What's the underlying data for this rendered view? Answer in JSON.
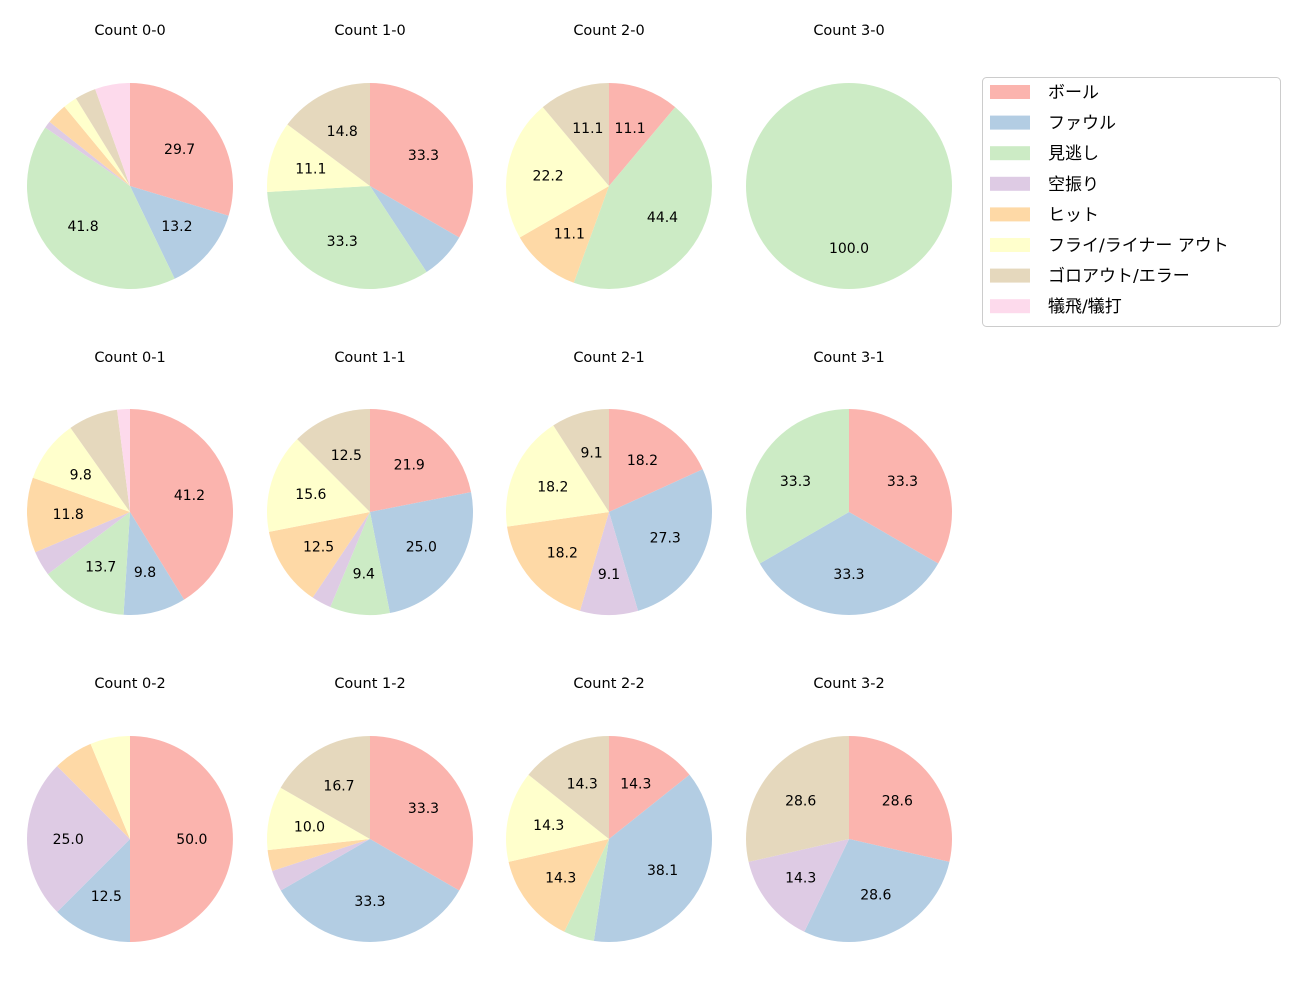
{
  "chart_data": {
    "type": "pie",
    "direction": "clockwise",
    "start": "top",
    "legend_placement": "right",
    "legend": [
      "ボール",
      "ファウル",
      "見逃し",
      "空振り",
      "ヒット",
      "フライ/ライナー アウト",
      "ゴロアウト/エラー",
      "犠飛/犠打"
    ],
    "colors": [
      "#fbb4ae",
      "#b3cde3",
      "#ccebc5",
      "#decbe4",
      "#fed9a6",
      "#ffffcc",
      "#e5d8bd",
      "#fddaec"
    ],
    "charts": [
      {
        "title": "Count 0-0",
        "values": [
          29.7,
          13.2,
          41.8,
          1.1,
          3.3,
          2.2,
          3.3,
          5.5
        ]
      },
      {
        "title": "Count 1-0",
        "values": [
          33.3,
          7.4,
          33.3,
          0,
          0,
          11.1,
          14.8,
          0
        ]
      },
      {
        "title": "Count 2-0",
        "values": [
          11.1,
          0,
          44.4,
          0,
          11.1,
          22.2,
          11.1,
          0
        ]
      },
      {
        "title": "Count 3-0",
        "values": [
          0,
          0,
          100.0,
          0,
          0,
          0,
          0,
          0
        ]
      },
      {
        "title": "Count 0-1",
        "values": [
          41.2,
          9.8,
          13.7,
          3.9,
          11.8,
          9.8,
          7.8,
          2.0
        ]
      },
      {
        "title": "Count 1-1",
        "values": [
          21.9,
          25.0,
          9.4,
          3.1,
          12.5,
          15.6,
          12.5,
          0
        ]
      },
      {
        "title": "Count 2-1",
        "values": [
          18.2,
          27.3,
          0,
          9.1,
          18.2,
          18.2,
          9.1,
          0
        ]
      },
      {
        "title": "Count 3-1",
        "values": [
          33.3,
          33.3,
          33.3,
          0,
          0,
          0,
          0,
          0
        ]
      },
      {
        "title": "Count 0-2",
        "values": [
          50.0,
          12.5,
          0,
          25.0,
          6.25,
          6.25,
          0,
          0
        ]
      },
      {
        "title": "Count 1-2",
        "values": [
          33.3,
          33.3,
          0,
          3.3,
          3.3,
          10.0,
          16.7,
          0
        ]
      },
      {
        "title": "Count 2-2",
        "values": [
          14.3,
          38.1,
          4.8,
          0,
          14.3,
          14.3,
          14.3,
          0
        ]
      },
      {
        "title": "Count 3-2",
        "values": [
          28.6,
          28.6,
          0,
          14.3,
          0,
          0,
          28.6,
          0
        ]
      }
    ]
  }
}
